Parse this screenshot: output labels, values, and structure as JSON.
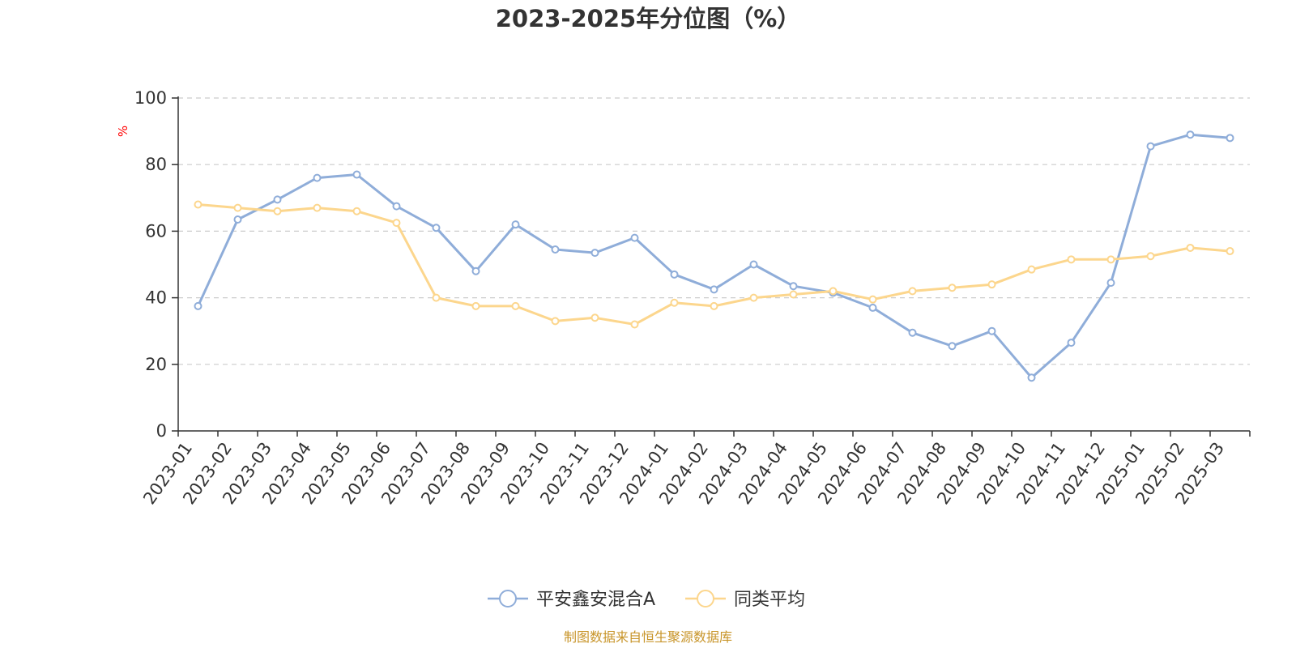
{
  "chart_data": {
    "type": "line",
    "title": "2023-2025年分位图（%）",
    "ylabel": "%",
    "ylim": [
      0,
      100
    ],
    "yticks": [
      0,
      20,
      40,
      60,
      80,
      100
    ],
    "grid": true,
    "legend_position": "bottom",
    "categories": [
      "2023-01",
      "2023-02",
      "2023-03",
      "2023-04",
      "2023-05",
      "2023-06",
      "2023-07",
      "2023-08",
      "2023-09",
      "2023-10",
      "2023-11",
      "2023-12",
      "2024-01",
      "2024-02",
      "2024-03",
      "2024-04",
      "2024-05",
      "2024-06",
      "2024-07",
      "2024-08",
      "2024-09",
      "2024-10",
      "2024-11",
      "2024-12",
      "2025-01",
      "2025-02",
      "2025-03"
    ],
    "series": [
      {
        "name": "平安鑫安混合A",
        "color": "#8fadd9",
        "values": [
          37.5,
          63.5,
          69.5,
          76,
          77,
          67.5,
          61,
          48,
          62,
          54.5,
          53.5,
          58,
          47,
          42.5,
          50,
          43.5,
          41.5,
          37,
          29.5,
          25.5,
          30,
          16,
          26.5,
          44.5,
          85.5,
          89,
          88
        ]
      },
      {
        "name": "同类平均",
        "color": "#fcd68d",
        "values": [
          68,
          67,
          66,
          67,
          66,
          62.5,
          40,
          37.5,
          37.5,
          33,
          34,
          32,
          38.5,
          37.5,
          40,
          41,
          42,
          39.5,
          42,
          43,
          44,
          48.5,
          51.5,
          51.5,
          52.5,
          55,
          54
        ]
      }
    ],
    "source": "制图数据来自恒生聚源数据库",
    "ylabel_color": "#ff0000",
    "source_color": "#c8952a"
  }
}
